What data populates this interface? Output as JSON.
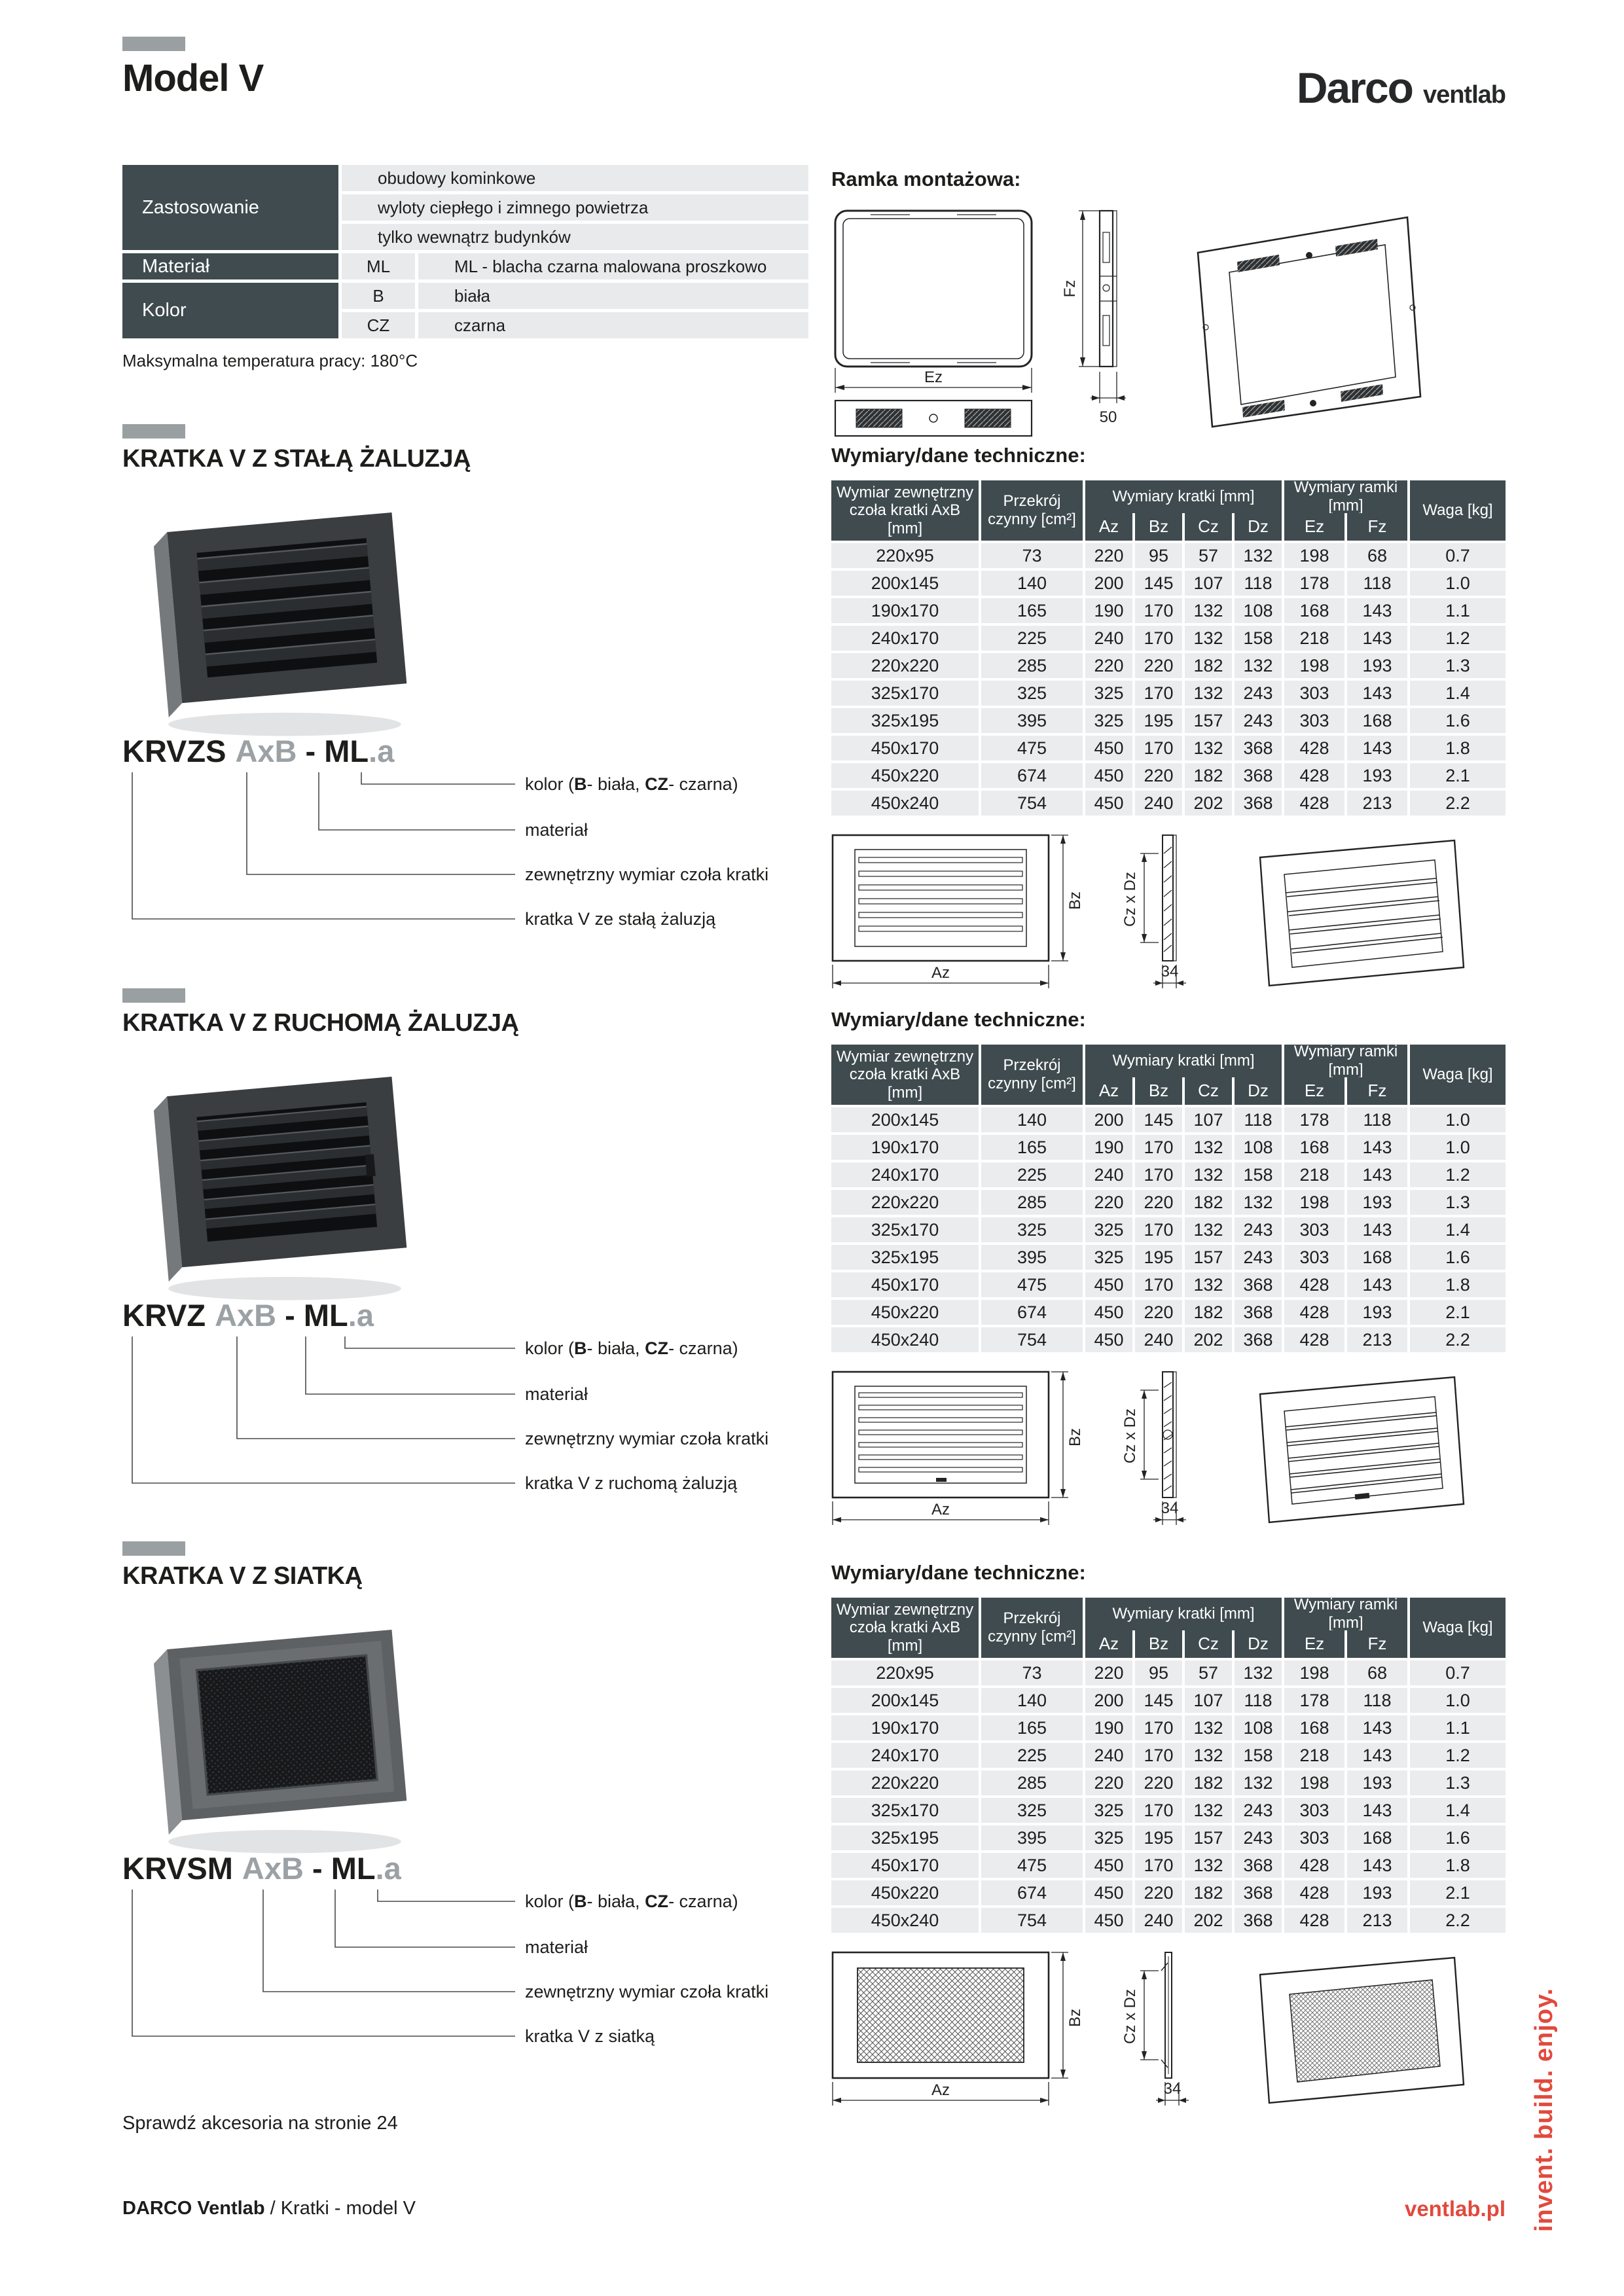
{
  "page": {
    "title": "Model V",
    "logo": {
      "brand": "Darco",
      "sub": "ventlab"
    },
    "max_temp": "Maksymalna temperatura pracy: 180°C",
    "tech_title": "Wymiary/dane techniczne:",
    "footer": {
      "accessories_note": "Sprawdź akcesoria na stronie 24",
      "brand": "DARCO Ventlab",
      "breadcrumb": "/ Kratki - model V",
      "url": "ventlab.pl",
      "slogan": "invent. build. enjoy."
    }
  },
  "info_table": {
    "zastosowanie_label": "Zastosowanie",
    "zastosowanie_values": [
      "obudowy kominkowe",
      "wyloty ciepłego i zimnego powietrza",
      "tylko wewnątrz budynków"
    ],
    "material_label": "Materiał",
    "material_code": "ML",
    "material_value": "ML - blacha czarna malowana proszkowo",
    "kolor_label": "Kolor",
    "kolor_rows": [
      {
        "code": "B",
        "value": "biała"
      },
      {
        "code": "CZ",
        "value": "czarna"
      }
    ]
  },
  "ramka": {
    "title": "Ramka montażowa:",
    "dims": {
      "fz": "Fz",
      "ez": "Ez",
      "depth": "50"
    }
  },
  "table_headers": {
    "col_dim": "Wymiar zewnętrzny czoła kratki AxB [mm]",
    "col_area": "Przekrój czynny [cm²]",
    "group_kratka": "Wymiary kratki [mm]",
    "group_ramka": "Wymiary ramki [mm]",
    "col_waga": "Waga [kg]",
    "sub_az": "Az",
    "sub_bz": "Bz",
    "sub_cz": "Cz",
    "sub_dz": "Dz",
    "sub_ez": "Ez",
    "sub_fz": "Fz"
  },
  "sections": [
    {
      "heading": "KRATKA V Z STAŁĄ ŻALUZJĄ",
      "code": {
        "model": "KRVZS",
        "size": "AxB",
        "sep": " - ",
        "material": "ML",
        "dot": ".",
        "color": "a"
      },
      "labels": {
        "kolor_prefix": "kolor (",
        "kolor_b": "B",
        "kolor_mid": "- biała, ",
        "kolor_cz": "CZ",
        "kolor_suffix": "- czarna)",
        "material": "materiał",
        "dimension": "zewnętrzny wymiar czoła kratki",
        "product": "kratka V ze stałą żaluzją"
      },
      "rows": [
        [
          "220x95",
          "73",
          "220",
          "95",
          "57",
          "132",
          "198",
          "68",
          "0.7"
        ],
        [
          "200x145",
          "140",
          "200",
          "145",
          "107",
          "118",
          "178",
          "118",
          "1.0"
        ],
        [
          "190x170",
          "165",
          "190",
          "170",
          "132",
          "108",
          "168",
          "143",
          "1.1"
        ],
        [
          "240x170",
          "225",
          "240",
          "170",
          "132",
          "158",
          "218",
          "143",
          "1.2"
        ],
        [
          "220x220",
          "285",
          "220",
          "220",
          "182",
          "132",
          "198",
          "193",
          "1.3"
        ],
        [
          "325x170",
          "325",
          "325",
          "170",
          "132",
          "243",
          "303",
          "143",
          "1.4"
        ],
        [
          "325x195",
          "395",
          "325",
          "195",
          "157",
          "243",
          "303",
          "168",
          "1.6"
        ],
        [
          "450x170",
          "475",
          "450",
          "170",
          "132",
          "368",
          "428",
          "143",
          "1.8"
        ],
        [
          "450x220",
          "674",
          "450",
          "220",
          "182",
          "368",
          "428",
          "193",
          "2.1"
        ],
        [
          "450x240",
          "754",
          "450",
          "240",
          "202",
          "368",
          "428",
          "213",
          "2.2"
        ]
      ],
      "drawing": {
        "az": "Az",
        "bz": "Bz",
        "czdz": "Cz x Dz",
        "depth": "34"
      }
    },
    {
      "heading": "KRATKA V Z RUCHOMĄ ŻALUZJĄ",
      "code": {
        "model": "KRVZ",
        "size": "AxB",
        "sep": " - ",
        "material": "ML",
        "dot": ".",
        "color": "a"
      },
      "labels": {
        "kolor_prefix": "kolor (",
        "kolor_b": "B",
        "kolor_mid": "- biała, ",
        "kolor_cz": "CZ",
        "kolor_suffix": "- czarna)",
        "material": "materiał",
        "dimension": "zewnętrzny wymiar czoła kratki",
        "product": "kratka V z ruchomą żaluzją"
      },
      "rows": [
        [
          "200x145",
          "140",
          "200",
          "145",
          "107",
          "118",
          "178",
          "118",
          "1.0"
        ],
        [
          "190x170",
          "165",
          "190",
          "170",
          "132",
          "108",
          "168",
          "143",
          "1.0"
        ],
        [
          "240x170",
          "225",
          "240",
          "170",
          "132",
          "158",
          "218",
          "143",
          "1.2"
        ],
        [
          "220x220",
          "285",
          "220",
          "220",
          "182",
          "132",
          "198",
          "193",
          "1.3"
        ],
        [
          "325x170",
          "325",
          "325",
          "170",
          "132",
          "243",
          "303",
          "143",
          "1.4"
        ],
        [
          "325x195",
          "395",
          "325",
          "195",
          "157",
          "243",
          "303",
          "168",
          "1.6"
        ],
        [
          "450x170",
          "475",
          "450",
          "170",
          "132",
          "368",
          "428",
          "143",
          "1.8"
        ],
        [
          "450x220",
          "674",
          "450",
          "220",
          "182",
          "368",
          "428",
          "193",
          "2.1"
        ],
        [
          "450x240",
          "754",
          "450",
          "240",
          "202",
          "368",
          "428",
          "213",
          "2.2"
        ]
      ],
      "drawing": {
        "az": "Az",
        "bz": "Bz",
        "czdz": "Cz x Dz",
        "depth": "34"
      }
    },
    {
      "heading": "KRATKA V Z SIATKĄ",
      "code": {
        "model": "KRVSM",
        "size": "AxB",
        "sep": " - ",
        "material": "ML",
        "dot": ".",
        "color": "a"
      },
      "labels": {
        "kolor_prefix": "kolor (",
        "kolor_b": "B",
        "kolor_mid": "- biała, ",
        "kolor_cz": "CZ",
        "kolor_suffix": "- czarna)",
        "material": "materiał",
        "dimension": "zewnętrzny wymiar czoła kratki",
        "product": "kratka V z siatką"
      },
      "rows": [
        [
          "220x95",
          "73",
          "220",
          "95",
          "57",
          "132",
          "198",
          "68",
          "0.7"
        ],
        [
          "200x145",
          "140",
          "200",
          "145",
          "107",
          "118",
          "178",
          "118",
          "1.0"
        ],
        [
          "190x170",
          "165",
          "190",
          "170",
          "132",
          "108",
          "168",
          "143",
          "1.1"
        ],
        [
          "240x170",
          "225",
          "240",
          "170",
          "132",
          "158",
          "218",
          "143",
          "1.2"
        ],
        [
          "220x220",
          "285",
          "220",
          "220",
          "182",
          "132",
          "198",
          "193",
          "1.3"
        ],
        [
          "325x170",
          "325",
          "325",
          "170",
          "132",
          "243",
          "303",
          "143",
          "1.4"
        ],
        [
          "325x195",
          "395",
          "325",
          "195",
          "157",
          "243",
          "303",
          "168",
          "1.6"
        ],
        [
          "450x170",
          "475",
          "450",
          "170",
          "132",
          "368",
          "428",
          "143",
          "1.8"
        ],
        [
          "450x220",
          "674",
          "450",
          "220",
          "182",
          "368",
          "428",
          "193",
          "2.1"
        ],
        [
          "450x240",
          "754",
          "450",
          "240",
          "202",
          "368",
          "428",
          "213",
          "2.2"
        ]
      ],
      "drawing": {
        "az": "Az",
        "bz": "Bz",
        "czdz": "Cz x Dz",
        "depth": "34"
      }
    }
  ]
}
